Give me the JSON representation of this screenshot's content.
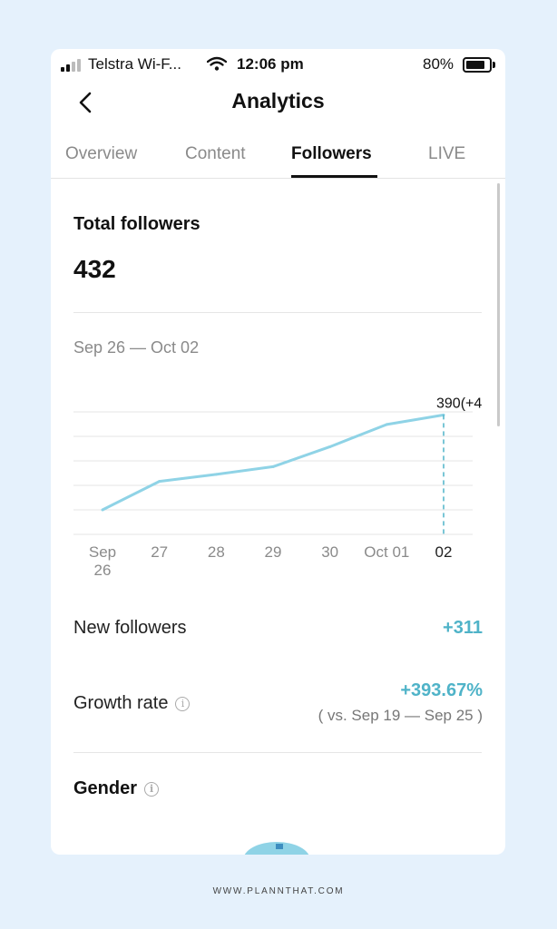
{
  "status_bar": {
    "carrier": "Telstra Wi-F...",
    "time": "12:06 pm",
    "battery": "80%"
  },
  "header": {
    "title": "Analytics",
    "back_icon": "chevron-left-icon"
  },
  "tabs": [
    {
      "label": "Overview",
      "active": false
    },
    {
      "label": "Content",
      "active": false
    },
    {
      "label": "Followers",
      "active": true
    },
    {
      "label": "LIVE",
      "active": false
    }
  ],
  "summary": {
    "title": "Total followers",
    "value": "432",
    "date_range": "Sep 26 — Oct 02"
  },
  "chart_data": {
    "type": "line",
    "categories": [
      "Sep 26",
      "27",
      "28",
      "29",
      "30",
      "Oct 01",
      "02"
    ],
    "values": [
      80,
      173,
      196,
      221,
      286,
      359,
      390
    ],
    "ylim": [
      0,
      400
    ],
    "grid": true,
    "highlight": {
      "index": 6,
      "label": "390(+4"
    },
    "color": "#8fd3e6"
  },
  "metrics": {
    "new_followers_label": "New followers",
    "new_followers_value": "+311",
    "growth_rate_label": "Growth rate",
    "growth_rate_value": "+393.67%",
    "growth_rate_compare": "( vs. Sep 19 — Sep 25 )"
  },
  "gender": {
    "title": "Gender"
  },
  "footer": {
    "text": "WWW.PLANNTHAT.COM"
  },
  "colors": {
    "accent": "#4fb3c8",
    "line": "#8fd3e6",
    "background": "#e5f1fc"
  }
}
